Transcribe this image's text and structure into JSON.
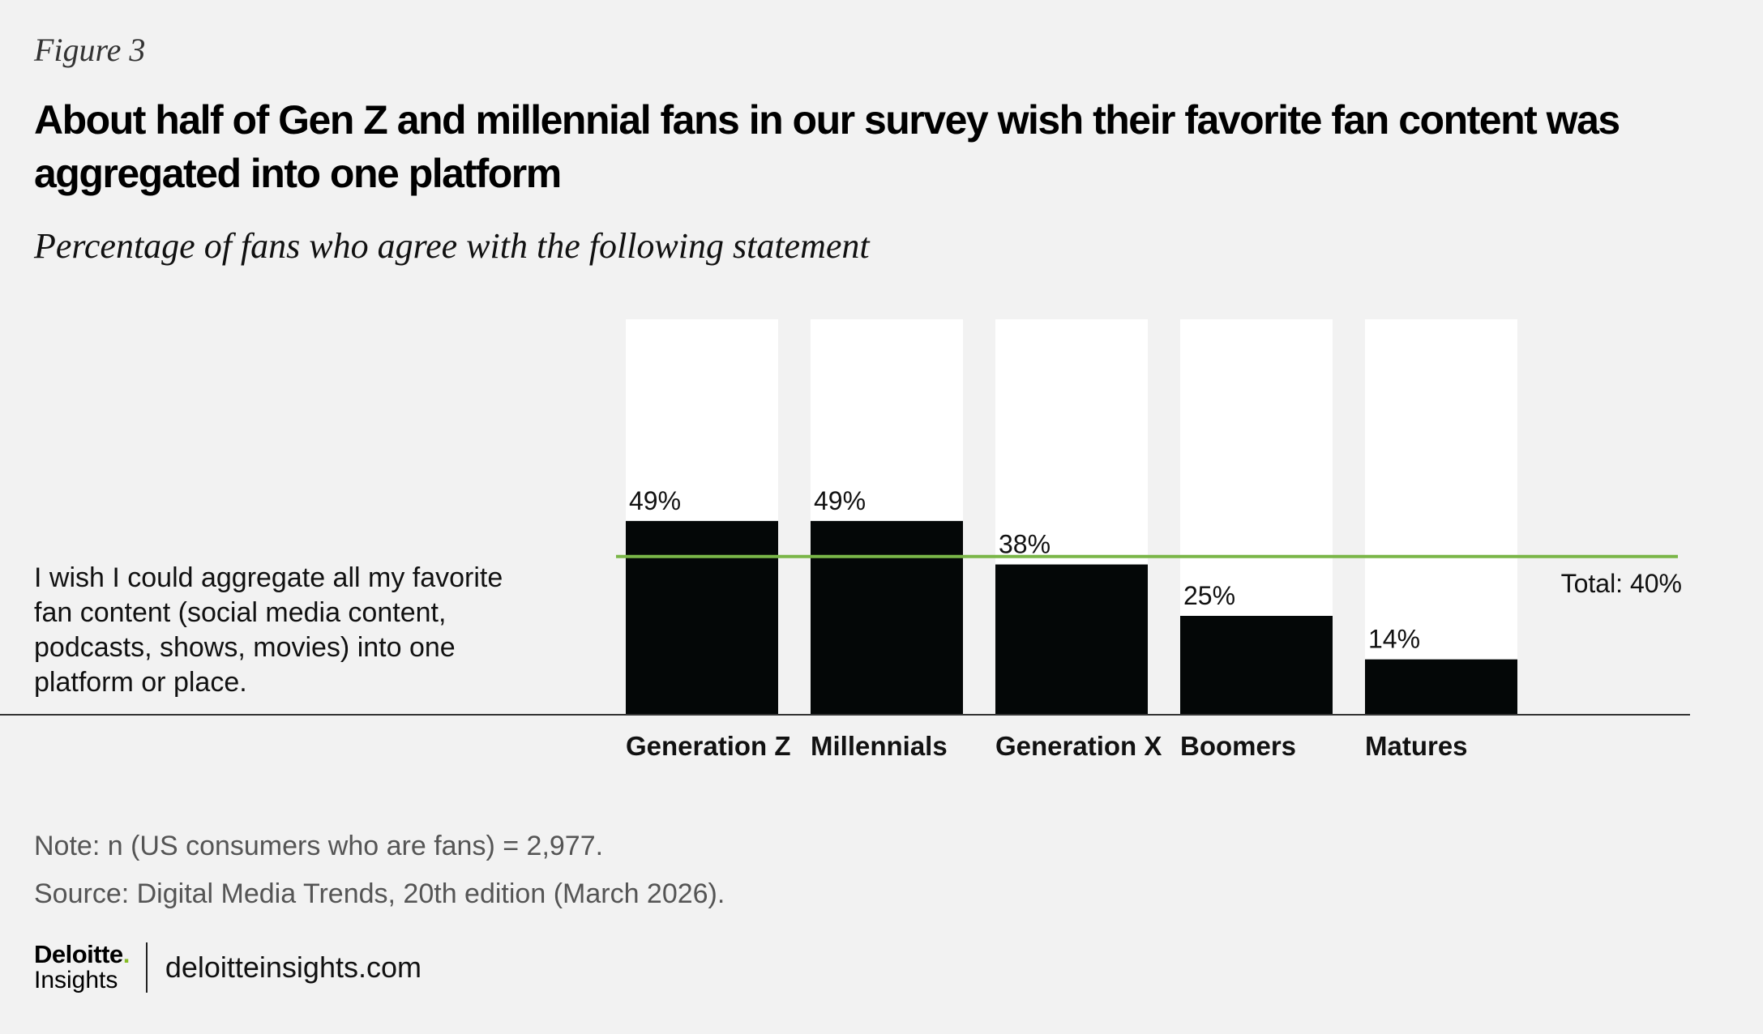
{
  "figure_label": "Figure 3",
  "title": "About half of Gen Z and millennial fans in our survey wish their favorite fan content was aggregated into one platform",
  "subtitle": "Percentage of fans who agree with the following statement",
  "statement": "I wish I could aggregate all my favorite fan content (social media content, podcasts, shows, movies) into one platform or place.",
  "note": "Note: n (US consumers who are fans) = 2,977.",
  "source": "Source: Digital Media Trends, 20th edition (March 2026).",
  "logo": {
    "name": "Deloitte",
    "dot": ".",
    "sub": "Insights",
    "site": "deloitteinsights.com"
  },
  "colors": {
    "bar": "#040707",
    "bar_background": "#ffffff",
    "total_line": "#7ab648",
    "background": "#f2f2f2"
  },
  "chart_data": {
    "type": "bar",
    "categories": [
      "Generation Z",
      "Millennials",
      "Generation X",
      "Boomers",
      "Matures"
    ],
    "values": [
      49,
      49,
      38,
      25,
      14
    ],
    "value_labels": [
      "49%",
      "49%",
      "38%",
      "25%",
      "14%"
    ],
    "ylim": [
      0,
      100
    ],
    "reference_line": {
      "value": 40,
      "label": "Total: 40%"
    },
    "title": "About half of Gen Z and millennial fans in our survey wish their favorite fan content was aggregated into one platform",
    "ylabel": "",
    "xlabel": ""
  }
}
